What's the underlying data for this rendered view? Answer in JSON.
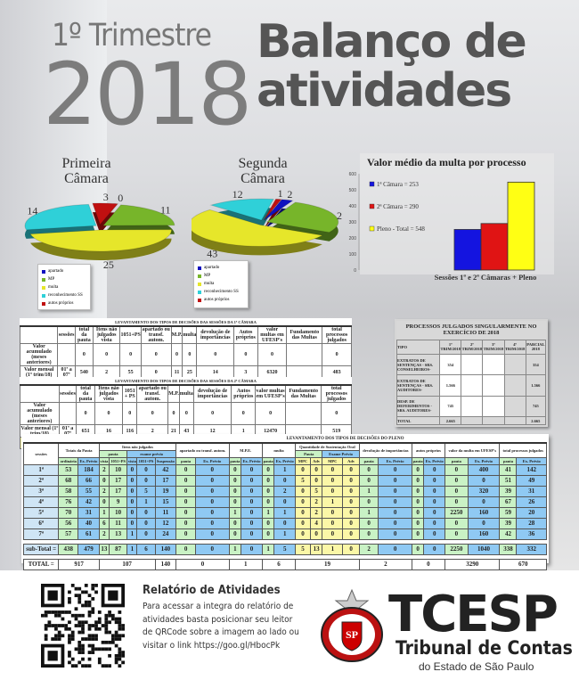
{
  "header": {
    "quarter": "1º Trimestre",
    "year": "2018",
    "title_line1": "Balanço de",
    "title_line2": "atividades"
  },
  "chart_data": [
    {
      "type": "pie",
      "title": "Primeira Câmara",
      "labels": [
        "apartado",
        "MP",
        "multa",
        "reconhecimento SS",
        "autos próprios"
      ],
      "values": [
        0,
        11,
        25,
        14,
        3
      ],
      "colors": [
        "#1010c0",
        "#77b52a",
        "#e6e62a",
        "#2fd0d8",
        "#c01010"
      ]
    },
    {
      "type": "pie",
      "title": "Segunda Câmara",
      "labels": [
        "apartado",
        "MP",
        "multa",
        "reconhecimento SS",
        "autos próprios"
      ],
      "values": [
        2,
        21,
        43,
        12,
        1
      ],
      "colors": [
        "#1010c0",
        "#77b52a",
        "#e6e62a",
        "#2fd0d8",
        "#c01010"
      ]
    },
    {
      "type": "bar",
      "title": "Valor médio da multa por processo",
      "categories": [
        "1ª Câmara",
        "2ª Câmara",
        "Pleno - Total"
      ],
      "values": [
        253,
        290,
        548
      ],
      "legend": [
        "1ª Câmara = 253",
        "2ª Câmara = 290",
        "Pleno - Total = 548"
      ],
      "colors": [
        "#1414e0",
        "#e01414",
        "#ffff14"
      ],
      "xlabel": "Sessões 1ª e 2ª Câmaras + Pleno",
      "ylim": [
        0,
        600
      ],
      "yticks": [
        "0",
        "100",
        "200",
        "300",
        "400",
        "500",
        "600"
      ],
      "legend_position": "left"
    }
  ],
  "camara1": {
    "title": "LEVANTAMENTO DOS TIPOS DE DECISÕES DAS SESSÕES DA 1ª CÂMARA",
    "headers": [
      "sessões",
      "total da pauta",
      "Itens não julgados vista",
      "1051+PS",
      "apartado ou transf. autom.",
      "M.P.",
      "multa",
      "devolução de importâncias",
      "Autos próprios",
      "valor multas em UFESP's",
      "Fundamento das Multas",
      "total processos julgados"
    ],
    "rows": [
      [
        "Valor acumulado (meses anteriores)",
        "",
        "0",
        "0",
        "0",
        "0",
        "0",
        "0",
        "0",
        "0",
        "0",
        "",
        "0"
      ],
      [
        "Valor mensal (1º trim/18)",
        "01ª a 07ª",
        "540",
        "2",
        "55",
        "0",
        "11",
        "25",
        "14",
        "3",
        "6320",
        "",
        "483"
      ],
      [
        "TOTAL GERAL",
        "",
        "540",
        "2",
        "55",
        "0",
        "11",
        "25",
        "14",
        "3",
        "6320",
        "",
        "483"
      ]
    ]
  },
  "camara2": {
    "title": "LEVANTAMENTO DOS TIPOS DE DECISÕES DAS SESSÕES DA 2ª CÂMARA",
    "headers": [
      "sessões",
      "total da pauta",
      "Itens não julgados vista",
      "1051 + PS",
      "apartado ou transf. autom.",
      "M.P.",
      "multa",
      "devolução de importâncias",
      "Autos próprios",
      "valor multas em UFESP's",
      "Fundamento das Multas",
      "total processos julgados"
    ],
    "rows": [
      [
        "Valor acumulado (meses anteriores)",
        "",
        "0",
        "0",
        "0",
        "0",
        "0",
        "0",
        "0",
        "0",
        "0",
        "",
        "0"
      ],
      [
        "Valor mensal (1º trim/18)",
        "01ª a 07ª",
        "651",
        "16",
        "116",
        "2",
        "21",
        "43",
        "12",
        "1",
        "12470",
        "",
        "519"
      ],
      [
        "TOTAL GERAL",
        "",
        "651",
        "16",
        "116",
        "2",
        "21",
        "43",
        "12",
        "1",
        "12470",
        "",
        "519"
      ]
    ]
  },
  "singular": {
    "title": "PROCESSOS JULGADOS SINGULARMENTE NO EXERCÍCIO DE 2018",
    "headers": [
      "TIPO",
      "1º TRIM/2018",
      "2º TRIM/2018",
      "3º TRIM/2018",
      "4º TRIM/2018",
      "PARCIAL 2018"
    ],
    "rows": [
      [
        "EXTRATOS DE SENTENÇAS - SRS. CONSELHEIROS-",
        "354",
        "",
        "",
        "",
        "354"
      ],
      [
        "EXTRATOS DE SENTENÇAS - SRS. AUDITORES-",
        "1.566",
        "",
        "",
        "",
        "1.566"
      ],
      [
        "DESP. DE DEFERIMENTOS -SRS. AUDITORES-",
        "745",
        "",
        "",
        "",
        "745"
      ],
      [
        "TOTAL",
        "2.665",
        "",
        "",
        "",
        "2.665"
      ]
    ]
  },
  "pleno": {
    "title": "LEVANTAMENTO DOS TIPOS DE DECISÕES DO PLENO",
    "groups": [
      "sessões",
      "Totais da Pauta",
      "Itens não julgados",
      "apartado ou transf. autom.",
      "M.P.E.",
      "multa",
      "Quantidade de Sustentação Oral",
      "devolução de importâncias",
      "autos próprios",
      "valor da multa em UFESP's",
      "total processos julgados"
    ],
    "subgroups": [
      "pauta",
      "exame prévio",
      "Pauta",
      "Exame Prévio"
    ],
    "cols": [
      "ordinária",
      "Ex. Prévio",
      "vista",
      "1051+PS",
      "vista",
      "1051+PS",
      "Suspensão",
      "pauta",
      "Ex. Prévio",
      "pauta",
      "Ex. Prévio",
      "pauta",
      "Ex. Prévio",
      "MPC",
      "Adv",
      "MPC",
      "Adv",
      "pauta",
      "Ex. Prévio",
      "pauta",
      "Ex. Prévio",
      "pauta",
      "Ex. Prévio",
      "pauta",
      "Ex. Prévio"
    ],
    "rows": [
      [
        "1ª",
        "53",
        "184",
        "2",
        "10",
        "0",
        "0",
        "42",
        "0",
        "0",
        "0",
        "0",
        "0",
        "1",
        "0",
        "0",
        "0",
        "0",
        "0",
        "0",
        "0",
        "0",
        "0",
        "400",
        "41",
        "142"
      ],
      [
        "2ª",
        "68",
        "66",
        "0",
        "17",
        "0",
        "0",
        "17",
        "0",
        "0",
        "0",
        "0",
        "0",
        "0",
        "5",
        "0",
        "0",
        "0",
        "0",
        "0",
        "0",
        "0",
        "0",
        "0",
        "51",
        "49"
      ],
      [
        "3ª",
        "58",
        "55",
        "2",
        "17",
        "0",
        "5",
        "19",
        "0",
        "0",
        "0",
        "0",
        "0",
        "2",
        "0",
        "5",
        "0",
        "0",
        "1",
        "0",
        "0",
        "0",
        "0",
        "320",
        "39",
        "31"
      ],
      [
        "4ª",
        "76",
        "42",
        "0",
        "9",
        "0",
        "1",
        "15",
        "0",
        "0",
        "0",
        "0",
        "0",
        "0",
        "0",
        "2",
        "1",
        "0",
        "0",
        "0",
        "0",
        "0",
        "0",
        "0",
        "67",
        "26"
      ],
      [
        "5ª",
        "70",
        "31",
        "1",
        "10",
        "0",
        "0",
        "11",
        "0",
        "0",
        "1",
        "0",
        "1",
        "1",
        "0",
        "2",
        "0",
        "0",
        "1",
        "0",
        "0",
        "0",
        "2250",
        "160",
        "59",
        "20"
      ],
      [
        "6ª",
        "56",
        "40",
        "6",
        "11",
        "0",
        "0",
        "12",
        "0",
        "0",
        "0",
        "0",
        "0",
        "0",
        "0",
        "4",
        "0",
        "0",
        "0",
        "0",
        "0",
        "0",
        "0",
        "0",
        "39",
        "28"
      ],
      [
        "7ª",
        "57",
        "61",
        "2",
        "13",
        "1",
        "0",
        "24",
        "0",
        "0",
        "0",
        "0",
        "0",
        "1",
        "0",
        "0",
        "0",
        "0",
        "0",
        "0",
        "0",
        "0",
        "0",
        "160",
        "42",
        "36"
      ]
    ],
    "subtotal": [
      "sub-Total =",
      "438",
      "479",
      "13",
      "87",
      "1",
      "6",
      "140",
      "0",
      "0",
      "1",
      "0",
      "1",
      "5",
      "5",
      "13",
      "1",
      "0",
      "2",
      "0",
      "0",
      "0",
      "2250",
      "1040",
      "338",
      "332"
    ],
    "total": [
      "TOTAL =",
      "917",
      "107",
      "140",
      "0",
      "1",
      "6",
      "19",
      "2",
      "0",
      "3290",
      "670"
    ]
  },
  "footer": {
    "report_title": "Relatório de Atividades",
    "report_text": "Para acessar a integra do relatório de atividades basta posicionar seu leitor de QRCode sobre a imagem ao lado ou visitar o link https://goo.gl/HbocPk",
    "brand": "TCESP",
    "brand_sub": "Tribunal de Contas",
    "brand_sub2": "do Estado de São Paulo",
    "seal_text": "SP"
  }
}
